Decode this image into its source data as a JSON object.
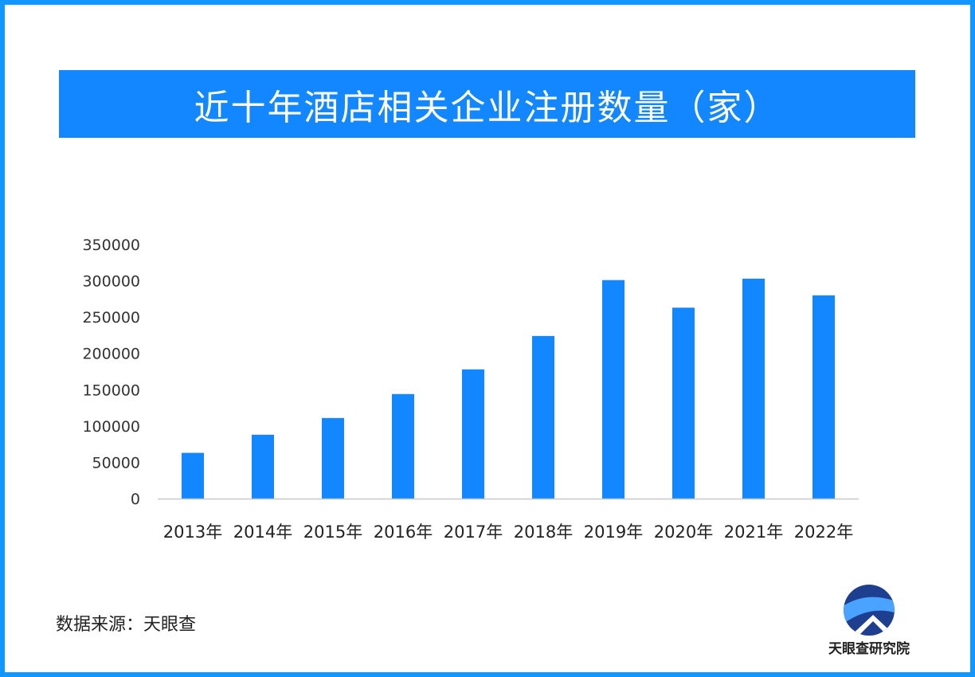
{
  "title": "近十年酒店相关企业注册数量（家）",
  "source": "数据来源：天眼查",
  "logo": {
    "text": "天眼查研究院",
    "icon": "tianyancha-logo-icon"
  },
  "colors": {
    "bar": "#1387ff",
    "banner": "#1387ff",
    "border": "#1296ff"
  },
  "chart_data": {
    "type": "bar",
    "title": "近十年酒店相关企业注册数量（家）",
    "xlabel": "",
    "ylabel": "",
    "ylim": [
      0,
      350000
    ],
    "yticks": [
      0,
      50000,
      100000,
      150000,
      200000,
      250000,
      300000,
      350000
    ],
    "grid": false,
    "categories": [
      "2013年",
      "2014年",
      "2015年",
      "2016年",
      "2017年",
      "2018年",
      "2019年",
      "2020年",
      "2021年",
      "2022年"
    ],
    "values": [
      63000,
      88000,
      111000,
      144000,
      178000,
      224000,
      301000,
      263000,
      303000,
      280000
    ]
  }
}
